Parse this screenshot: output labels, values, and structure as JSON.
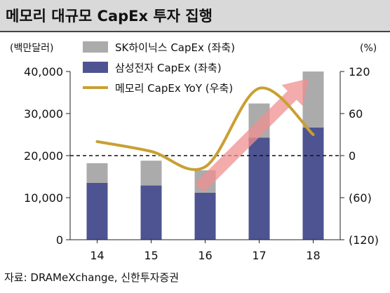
{
  "title": "메모리 대규모 CapEx 투자 집행",
  "source": "자료: DRAMeXchange, 신한투자증권",
  "colors": {
    "sk_bar": "#ababab",
    "samsung_bar": "#4e5491",
    "line": "#c8a033",
    "arrow": "#ef8f8f",
    "zero_line": "#111111"
  },
  "chart_data": {
    "type": "bar",
    "title": "메모리 대규모 CapEx 투자 집행",
    "stacked": true,
    "categories": [
      "14",
      "15",
      "16",
      "17",
      "18"
    ],
    "y_left": {
      "label": "(백만달러)",
      "range": [
        0,
        40000
      ],
      "ticks": [
        "0",
        "10,000",
        "20,000",
        "30,000",
        "40,000"
      ]
    },
    "y_right": {
      "label": "(%)",
      "range": [
        -120,
        120
      ],
      "ticks": [
        "(120)",
        "(60)",
        "0",
        "60",
        "120"
      ]
    },
    "legend": {
      "position": "top-center"
    },
    "series": [
      {
        "name": "SK하이닉스 CapEx (좌축)",
        "type": "bar",
        "axis": "left",
        "values": [
          4700,
          5900,
          5300,
          8100,
          13300
        ]
      },
      {
        "name": "삼성전자 CapEx (좌축)",
        "type": "bar",
        "axis": "left",
        "values": [
          13500,
          12900,
          11200,
          24300,
          26700
        ]
      },
      {
        "name": "메모리 CapEx YoY (우축)",
        "type": "line",
        "axis": "right",
        "values": [
          20,
          6,
          -16,
          96,
          30
        ]
      }
    ],
    "annotations": {
      "zero_line": "dashed at 0 on right axis",
      "trend_arrow": "upward arrow from 16 to 18"
    }
  }
}
